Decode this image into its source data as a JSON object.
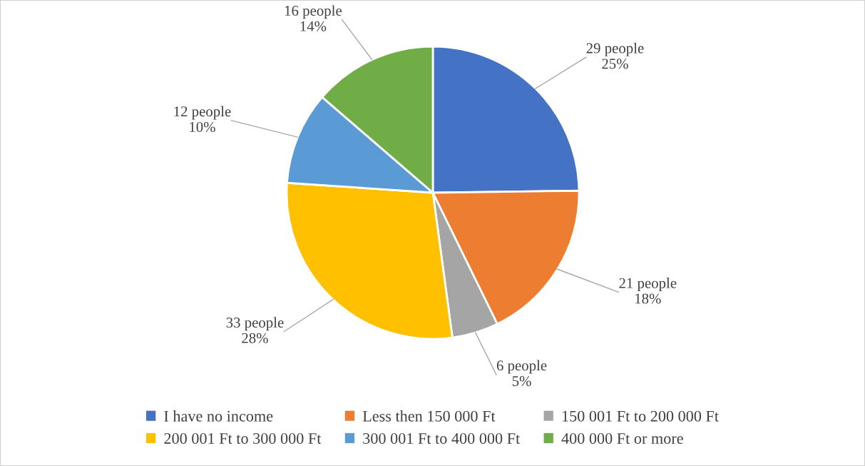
{
  "chart_data": {
    "type": "pie",
    "categories": [
      "I have no income",
      "Less then 150 000 Ft",
      "150 001 Ft to 200 000 Ft",
      "200 001 Ft to 300 000 Ft",
      "300 001 Ft to 400 000 Ft",
      "400 000 Ft or more"
    ],
    "values": [
      29,
      21,
      6,
      33,
      12,
      16
    ],
    "value_labels": [
      "29 people\n25%",
      "21 people\n18%",
      "6 people\n5%",
      "33 people\n28%",
      "12 people\n10%",
      "16 people\n14%"
    ],
    "colors": [
      "#4472c4",
      "#ed7d31",
      "#a5a5a5",
      "#ffc000",
      "#5b9bd5",
      "#70ad47"
    ],
    "legend": "bottom"
  }
}
